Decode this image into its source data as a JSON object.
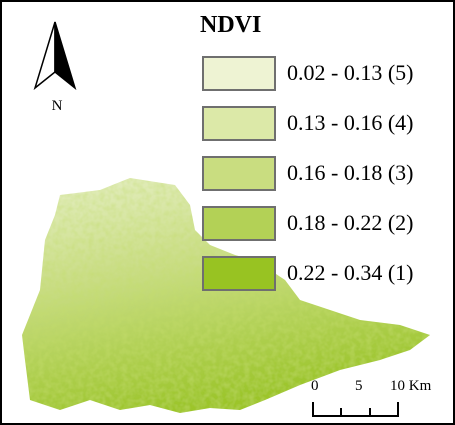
{
  "title": "NDVI",
  "north_label": "N",
  "legend": [
    {
      "label": "0.02 - 0.13 (5)",
      "color": "#eef3d3"
    },
    {
      "label": "0.13 - 0.16 (4)",
      "color": "#dce9a8"
    },
    {
      "label": "0.16 - 0.18 (3)",
      "color": "#c9dd80"
    },
    {
      "label": "0.18 - 0.22 (2)",
      "color": "#b3d156"
    },
    {
      "label": "0.22 - 0.34 (1)",
      "color": "#98c322"
    }
  ],
  "scale_bar": {
    "labels": [
      "0",
      "5",
      "10 Km"
    ]
  }
}
